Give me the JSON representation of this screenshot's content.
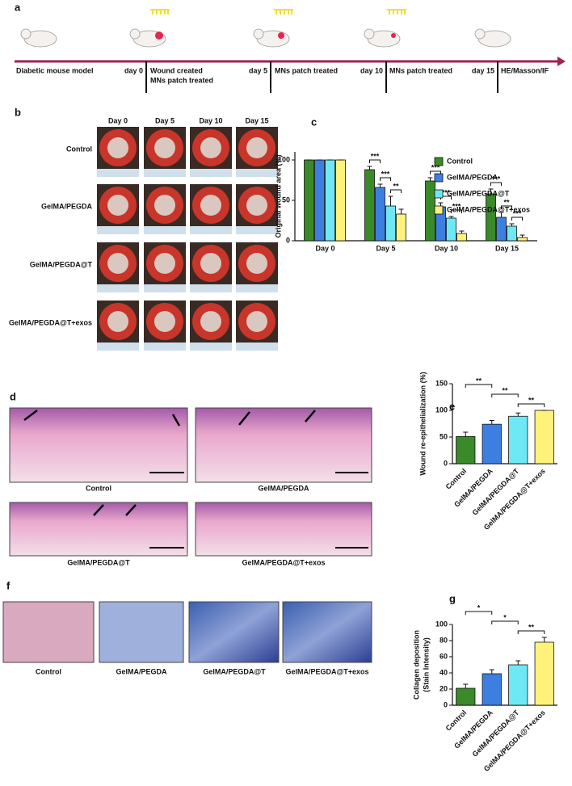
{
  "panel_a": {
    "label": "a",
    "start": "Diabetic mouse model",
    "steps": [
      {
        "day": "day 0",
        "text": [
          "Wound created",
          "MNs patch treated"
        ]
      },
      {
        "day": "day 5",
        "text": [
          "MNs patch treated"
        ]
      },
      {
        "day": "day 10",
        "text": [
          "MNs patch treated"
        ]
      },
      {
        "day": "day 15",
        "text": [
          "HE/Masson/IF"
        ]
      }
    ]
  },
  "panel_b": {
    "label": "b",
    "columns": [
      "Day 0",
      "Day 5",
      "Day 10",
      "Day 15"
    ],
    "rows": [
      "Control",
      "GelMA/PEGDA",
      "GelMA/PEGDA@T",
      "GelMA/PEGDA@T+exos"
    ]
  },
  "panel_d": {
    "label": "d",
    "images": [
      "Control",
      "GelMA/PEGDA",
      "GelMA/PEGDA@T",
      "GelMA/PEGDA@T+exos"
    ]
  },
  "panel_f": {
    "label": "f",
    "images": [
      "Control",
      "GelMA/PEGDA",
      "GelMA/PEGDA@T",
      "GelMA/PEGDA@T+exos"
    ]
  },
  "chart_data": [
    {
      "type": "bar",
      "label": "c",
      "ylabel": "Original wound area (%)",
      "categories": [
        "Day 0",
        "Day 5",
        "Day 10",
        "Day 15"
      ],
      "series": [
        {
          "name": "Control",
          "color": "#3a8a2a",
          "values": [
            100,
            88,
            74,
            58
          ],
          "errors": [
            0,
            4,
            4,
            6
          ]
        },
        {
          "name": "GelMA/PEGDA",
          "color": "#3d7fe0",
          "values": [
            100,
            66,
            42,
            29
          ],
          "errors": [
            0,
            4,
            5,
            6
          ]
        },
        {
          "name": "GelMA/PEGDA@T",
          "color": "#6ee8f5",
          "values": [
            100,
            43,
            28,
            18
          ],
          "errors": [
            0,
            12,
            2,
            3
          ]
        },
        {
          "name": "GelMA/PEGDA@T+exos",
          "color": "#fff27a",
          "values": [
            100,
            33,
            9,
            4
          ],
          "errors": [
            0,
            6,
            3,
            3
          ]
        }
      ],
      "significance": [
        null,
        [
          "***",
          "***",
          "**"
        ],
        [
          "***",
          "***",
          "***"
        ],
        [
          "***",
          "**",
          "***"
        ]
      ],
      "ylim": [
        0,
        110
      ],
      "yticks": [
        0,
        50,
        100
      ]
    },
    {
      "type": "bar",
      "label": "e",
      "ylabel": "Wound re-epithelialization (%)",
      "categories": [
        "Control",
        "GelMA/PEGDA",
        "GelMA/PEGDA@T",
        "GelMA/PEGDA@T+exos"
      ],
      "values": [
        51,
        74,
        89,
        100
      ],
      "errors": [
        8,
        7,
        6,
        0
      ],
      "colors": [
        "#3a8a2a",
        "#3d7fe0",
        "#6ee8f5",
        "#fff27a"
      ],
      "significance": [
        "**",
        "**",
        "**"
      ],
      "ylim": [
        0,
        150
      ],
      "yticks": [
        0,
        50,
        100,
        150
      ]
    },
    {
      "type": "bar",
      "label": "g",
      "ylabel": [
        "Collagen deposition",
        "(Stain Intensity)"
      ],
      "categories": [
        "Control",
        "GelMA/PEGDA",
        "GelMA/PEGDA@T",
        "GelMA/PEGDA@T+exos"
      ],
      "values": [
        21,
        39,
        50,
        78
      ],
      "errors": [
        5,
        5,
        5,
        6
      ],
      "colors": [
        "#3a8a2a",
        "#3d7fe0",
        "#6ee8f5",
        "#fff27a"
      ],
      "significance": [
        "*",
        "*",
        "**"
      ],
      "ylim": [
        0,
        100
      ],
      "yticks": [
        0,
        20,
        40,
        60,
        80,
        100
      ]
    }
  ]
}
